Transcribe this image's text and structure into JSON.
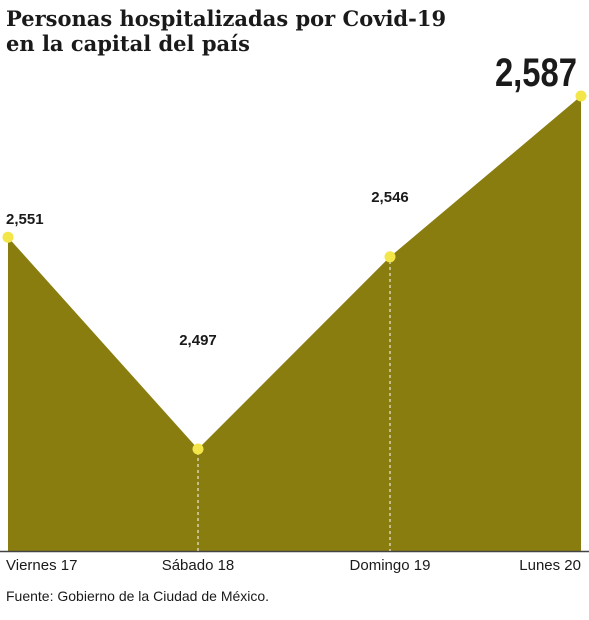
{
  "title_lines": [
    "Personas hospitalizadas por Covid-19",
    "en la capital del país"
  ],
  "source": "Fuente: Gobierno de la Ciudad de México.",
  "colors": {
    "area": "#8a7d10",
    "marker": "#f2e64a",
    "text": "#1a1a1a",
    "axis": "#444444"
  },
  "chart_data": {
    "type": "area",
    "title": "Personas hospitalizadas por Covid-19 en la capital del país",
    "categories": [
      "Viernes 17",
      "Sábado 18",
      "Domingo 19",
      "Lunes 20"
    ],
    "values": [
      2551,
      2497,
      2546,
      2587
    ],
    "value_labels": [
      "2,551",
      "2,497",
      "2,546",
      "2,587"
    ],
    "xlabel": "",
    "ylabel": "",
    "legend": "none",
    "grid": false
  }
}
